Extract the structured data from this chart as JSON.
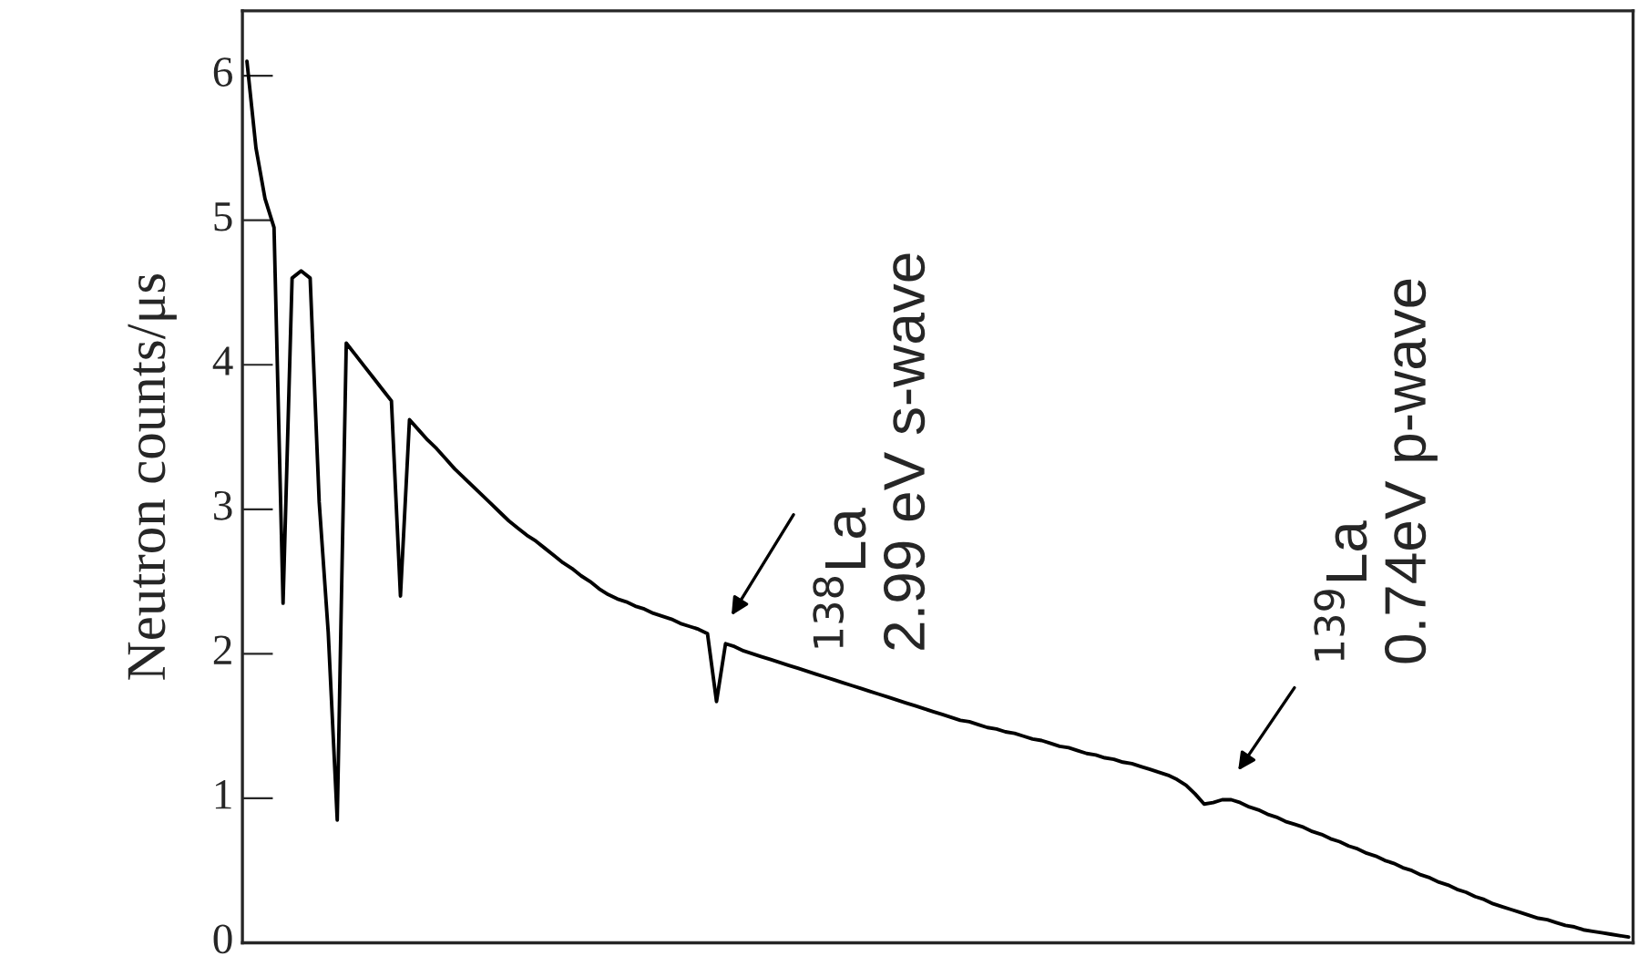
{
  "chart_data": {
    "type": "line",
    "ylabel": "Neutron counts/μs",
    "categories": [
      null,
      null,
      null,
      null,
      null,
      null,
      null,
      null,
      null,
      null,
      null,
      null,
      null,
      null,
      null,
      null,
      null,
      null,
      null,
      null,
      null,
      null,
      null,
      null,
      null,
      null,
      null,
      null,
      null,
      null,
      null,
      null,
      null,
      null,
      null,
      null,
      null,
      null,
      null,
      null,
      null,
      null,
      null,
      null,
      null,
      null,
      null,
      null,
      null,
      null,
      null,
      null,
      null,
      null,
      null,
      null,
      null,
      null,
      null,
      null,
      null,
      null,
      null,
      null,
      null,
      null,
      null,
      null,
      null,
      null,
      null,
      null,
      null,
      null,
      null,
      null,
      null,
      null,
      null,
      null,
      null,
      null,
      null,
      null,
      null,
      null,
      null,
      null,
      null,
      null,
      null,
      null,
      null,
      null,
      null,
      null,
      null,
      null,
      null,
      null,
      null,
      null,
      null,
      null,
      null,
      null,
      null,
      null,
      null,
      null,
      null,
      null,
      null,
      null,
      null,
      null,
      null,
      null,
      null,
      null,
      null,
      null,
      null,
      null,
      null,
      null,
      null,
      null,
      null,
      null,
      null,
      null,
      null,
      null,
      null,
      null,
      null,
      null,
      null,
      null,
      null,
      null,
      null,
      null,
      null,
      null,
      null,
      null,
      null,
      null,
      null,
      null,
      null,
      null
    ],
    "series": [
      {
        "color": "#000000",
        "values": [
          6.1,
          5.5,
          5.15,
          4.95,
          2.35,
          4.6,
          4.65,
          4.6,
          3.05,
          2.15,
          0.85,
          4.15,
          4.07,
          3.99,
          3.91,
          3.83,
          3.75,
          2.4,
          3.62,
          3.55,
          3.48,
          3.42,
          3.35,
          3.28,
          3.22,
          3.16,
          3.1,
          3.04,
          2.98,
          2.92,
          2.87,
          2.82,
          2.78,
          2.73,
          2.68,
          2.63,
          2.59,
          2.54,
          2.5,
          2.45,
          2.41,
          2.38,
          2.36,
          2.33,
          2.31,
          2.28,
          2.26,
          2.24,
          2.21,
          2.19,
          2.17,
          2.14,
          1.67,
          2.07,
          2.05,
          2.02,
          2.0,
          1.98,
          1.96,
          1.94,
          1.92,
          1.9,
          1.88,
          1.86,
          1.84,
          1.82,
          1.8,
          1.78,
          1.76,
          1.74,
          1.72,
          1.7,
          1.68,
          1.66,
          1.64,
          1.62,
          1.6,
          1.58,
          1.56,
          1.54,
          1.53,
          1.51,
          1.49,
          1.48,
          1.46,
          1.45,
          1.43,
          1.41,
          1.4,
          1.38,
          1.36,
          1.35,
          1.33,
          1.31,
          1.3,
          1.28,
          1.27,
          1.25,
          1.24,
          1.22,
          1.2,
          1.18,
          1.16,
          1.13,
          1.09,
          1.03,
          0.96,
          0.97,
          0.99,
          0.99,
          0.97,
          0.94,
          0.92,
          0.89,
          0.87,
          0.84,
          0.82,
          0.8,
          0.77,
          0.75,
          0.72,
          0.7,
          0.67,
          0.65,
          0.62,
          0.6,
          0.57,
          0.55,
          0.52,
          0.5,
          0.47,
          0.45,
          0.42,
          0.4,
          0.37,
          0.35,
          0.32,
          0.3,
          0.27,
          0.25,
          0.23,
          0.21,
          0.19,
          0.17,
          0.16,
          0.14,
          0.12,
          0.11,
          0.09,
          0.08,
          0.07,
          0.06,
          0.05,
          0.04
        ]
      }
    ],
    "ylim": [
      0,
      6.45
    ],
    "yticks": [
      0,
      1,
      2,
      3,
      4,
      5,
      6
    ],
    "tick_labels": "y",
    "grid": false,
    "legend": false,
    "marker": "none",
    "line_style": "solid",
    "annotations": [
      "$^{138}$La\n2.99 eV s-wave",
      "$^{139}$La\n0.74eV p-wave"
    ]
  }
}
